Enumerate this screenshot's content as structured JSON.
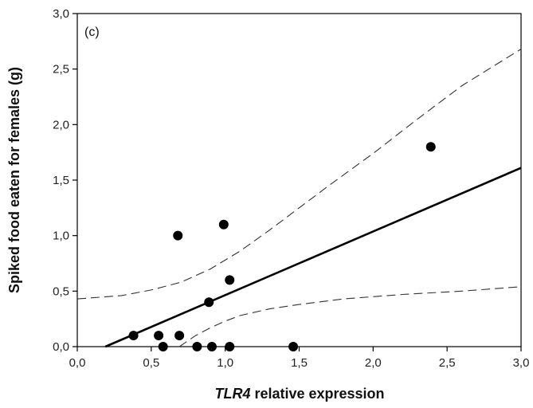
{
  "chart_data": {
    "type": "scatter",
    "panel_label": "(c)",
    "xlabel_italic": "TLR4",
    "xlabel_rest": " relative expression",
    "ylabel": "Spiked food eaten for females (g)",
    "xlim": [
      0.0,
      3.0
    ],
    "ylim": [
      0.0,
      3.0
    ],
    "xticks": [
      "0,0",
      "0,5",
      "1,0",
      "1,5",
      "2,0",
      "2,5",
      "3,0"
    ],
    "yticks": [
      "0,0",
      "0,5",
      "1,0",
      "1,5",
      "2,0",
      "2,5",
      "3,0"
    ],
    "grid": false,
    "legend": "none",
    "points": [
      {
        "x": 0.38,
        "y": 0.1
      },
      {
        "x": 0.55,
        "y": 0.1
      },
      {
        "x": 0.58,
        "y": 0.0
      },
      {
        "x": 0.68,
        "y": 1.0
      },
      {
        "x": 0.69,
        "y": 0.1
      },
      {
        "x": 0.81,
        "y": 0.0
      },
      {
        "x": 0.89,
        "y": 0.4
      },
      {
        "x": 0.91,
        "y": 0.0
      },
      {
        "x": 0.99,
        "y": 1.1
      },
      {
        "x": 1.03,
        "y": 0.6
      },
      {
        "x": 1.03,
        "y": 0.0
      },
      {
        "x": 1.46,
        "y": 0.0
      },
      {
        "x": 2.39,
        "y": 1.8
      }
    ],
    "fit_line": [
      [
        0.19,
        0.0
      ],
      [
        3.0,
        1.61
      ]
    ],
    "ci_upper": [
      [
        0.0,
        0.43
      ],
      [
        0.3,
        0.46
      ],
      [
        0.5,
        0.51
      ],
      [
        0.7,
        0.58
      ],
      [
        0.9,
        0.7
      ],
      [
        1.1,
        0.86
      ],
      [
        1.3,
        1.05
      ],
      [
        1.5,
        1.25
      ],
      [
        1.7,
        1.45
      ],
      [
        2.0,
        1.74
      ],
      [
        2.3,
        2.05
      ],
      [
        2.6,
        2.35
      ],
      [
        3.0,
        2.68
      ]
    ],
    "ci_lower": [
      [
        0.69,
        0.0
      ],
      [
        0.8,
        0.1
      ],
      [
        0.9,
        0.17
      ],
      [
        1.0,
        0.23
      ],
      [
        1.1,
        0.28
      ],
      [
        1.3,
        0.34
      ],
      [
        1.5,
        0.38
      ],
      [
        1.8,
        0.43
      ],
      [
        2.2,
        0.47
      ],
      [
        2.6,
        0.5
      ],
      [
        3.0,
        0.54
      ]
    ],
    "colors": {
      "points": "#000000",
      "line": "#000000",
      "ci": "#333333"
    }
  }
}
